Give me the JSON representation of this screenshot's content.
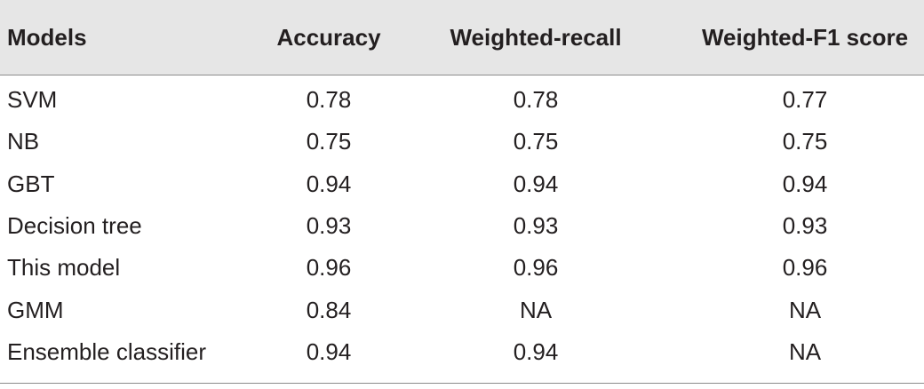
{
  "table": {
    "header": [
      "Models",
      "Accuracy",
      "Weighted-recall",
      "Weighted-F1 score"
    ],
    "rows": [
      [
        "SVM",
        0.78,
        0.78,
        0.77
      ],
      [
        "NB",
        0.75,
        0.75,
        0.75
      ],
      [
        "GBT",
        0.94,
        0.94,
        0.94
      ],
      [
        "Decision tree",
        0.93,
        0.93,
        0.93
      ],
      [
        "This model",
        0.96,
        0.96,
        0.96
      ],
      [
        "GMM",
        0.84,
        "NA",
        "NA"
      ],
      [
        "Ensemble classifier",
        0.94,
        0.94,
        "NA"
      ]
    ]
  }
}
